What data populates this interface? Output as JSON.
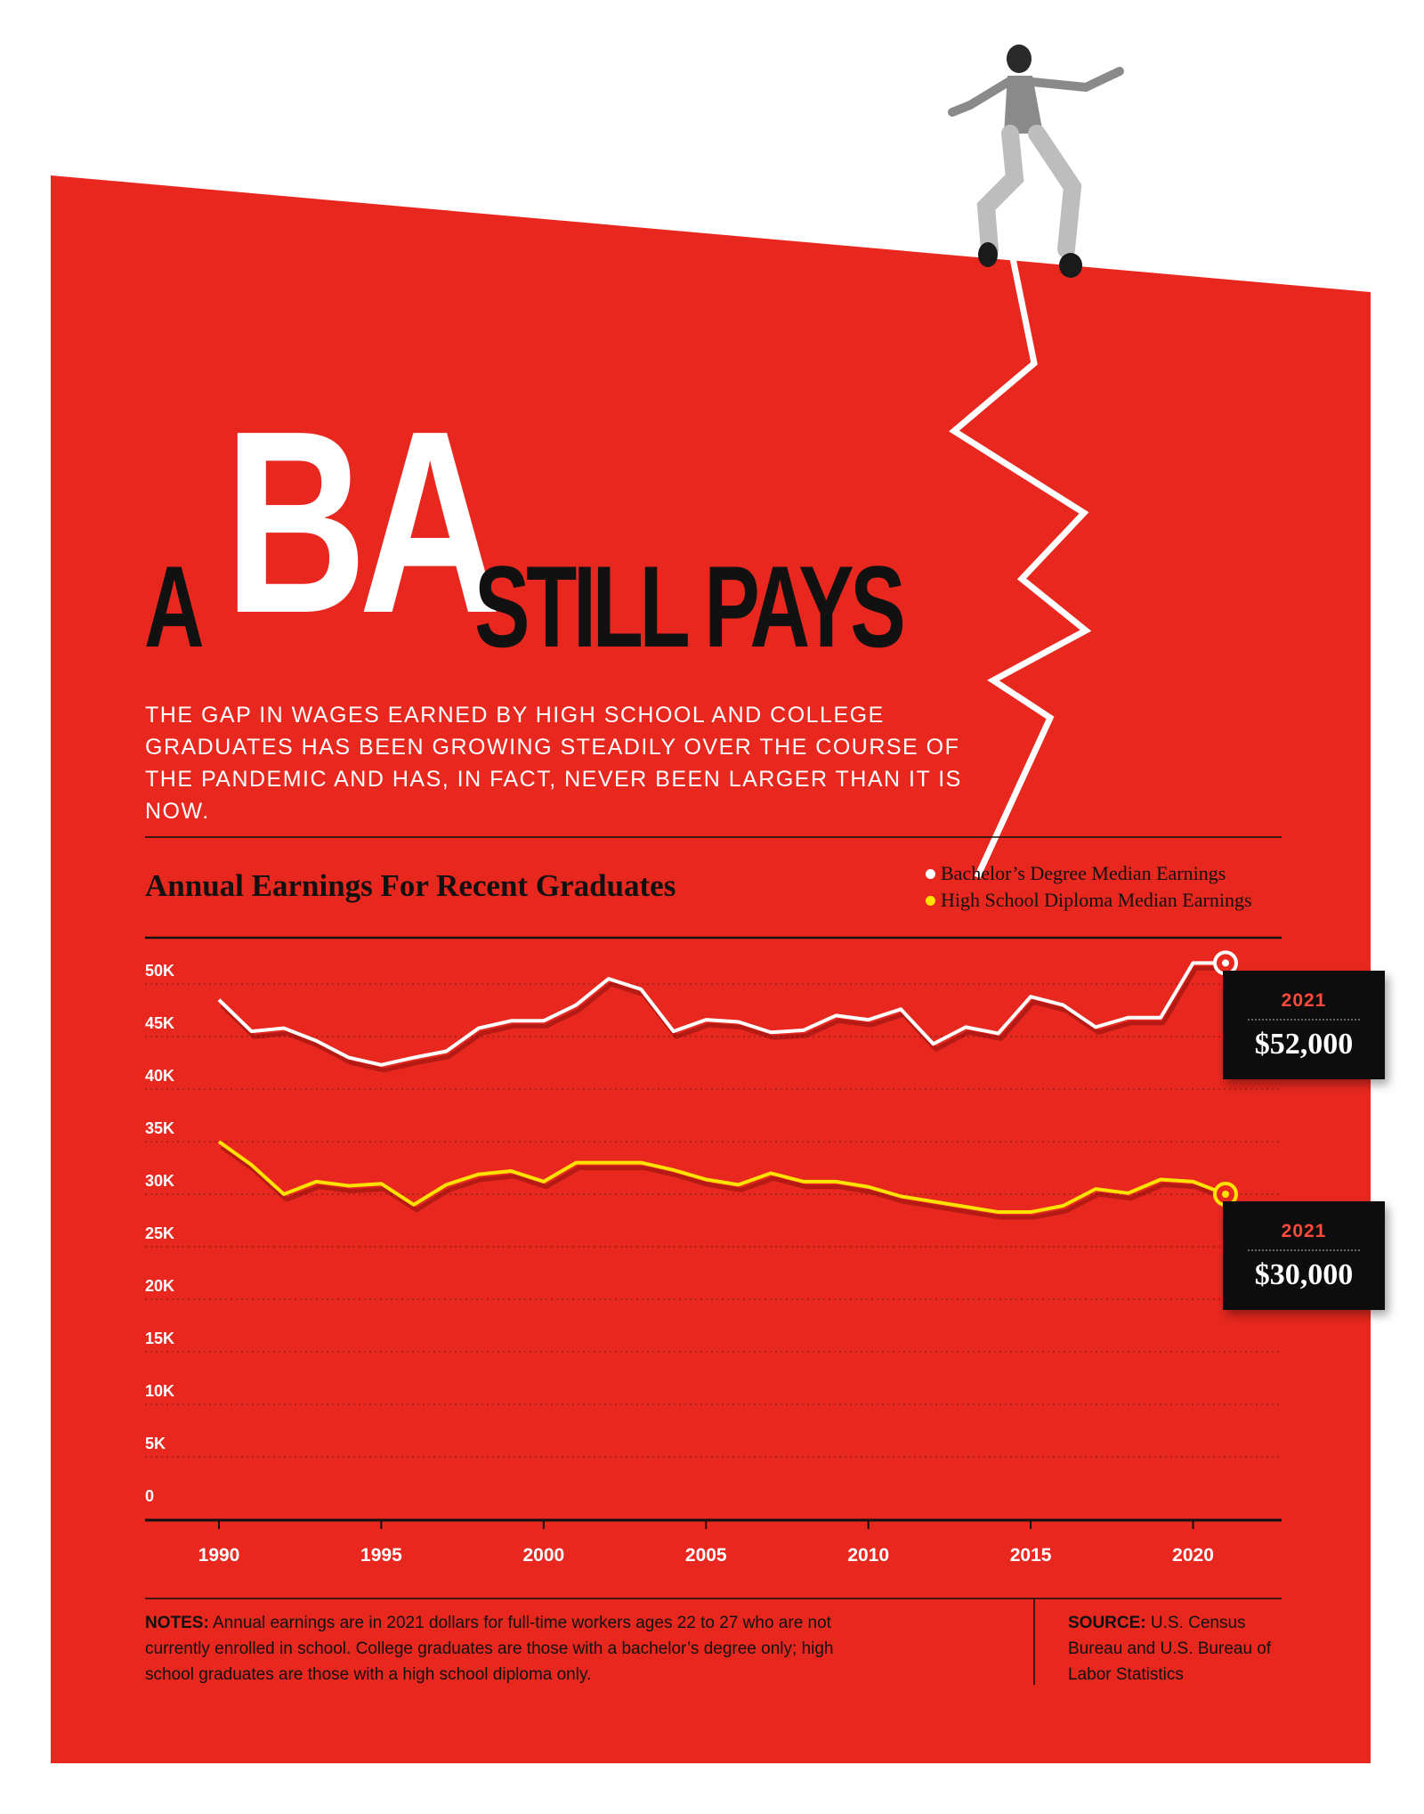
{
  "headline": {
    "a": "A",
    "ba": "BA",
    "rest": "STILL PAYS"
  },
  "subtitle": "THE GAP IN WAGES EARNED BY HIGH SCHOOL AND COLLEGE GRADUATES HAS BEEN GROWING STEADILY OVER THE COURSE OF THE PANDEMIC AND HAS, IN FACT, NEVER BEEN LARGER THAN IT IS NOW.",
  "colors": {
    "background": "#e8281f",
    "bachelor": "#ffffff",
    "high_school": "#ffe300",
    "ink": "#111111"
  },
  "callouts": [
    {
      "year": "2021",
      "value": "$52,000"
    },
    {
      "year": "2021",
      "value": "$30,000"
    }
  ],
  "notes": {
    "label": "NOTES:",
    "text": " Annual earnings are in 2021 dollars for full-time workers ages 22 to 27 who are not currently enrolled in school. College graduates are those with a bachelor’s degree only; high school graduates are those with a high school diploma only."
  },
  "source": {
    "label": "SOURCE:",
    "text": " U.S. Census Bureau and U.S. Bureau of Labor Statistics"
  },
  "chart_data": {
    "type": "line",
    "title": "Annual Earnings For Recent Graduates",
    "xlabel": "",
    "ylabel": "",
    "x": [
      1990,
      1991,
      1992,
      1993,
      1994,
      1995,
      1996,
      1997,
      1998,
      1999,
      2000,
      2001,
      2002,
      2003,
      2004,
      2005,
      2006,
      2007,
      2008,
      2009,
      2010,
      2011,
      2012,
      2013,
      2014,
      2015,
      2016,
      2017,
      2018,
      2019,
      2020,
      2021
    ],
    "xticks": [
      1990,
      1995,
      2000,
      2005,
      2010,
      2015,
      2020
    ],
    "xtick_labels": [
      "1990",
      "1995",
      "2000",
      "2005",
      "2010",
      "2015",
      "2020"
    ],
    "ylim": [
      0,
      52000
    ],
    "yticks": [
      0,
      5000,
      10000,
      15000,
      20000,
      25000,
      30000,
      35000,
      40000,
      45000,
      50000
    ],
    "ytick_labels": [
      "0",
      "5K",
      "10K",
      "15K",
      "20K",
      "25K",
      "30K",
      "35K",
      "40K",
      "45K",
      "50K"
    ],
    "grid": true,
    "legend": "top-right",
    "series": [
      {
        "name": "Bachelor’s Degree Median Earnings",
        "color": "#ffffff",
        "values": [
          48500,
          45500,
          45800,
          44600,
          43000,
          42300,
          43000,
          43600,
          45800,
          46500,
          46500,
          48000,
          50500,
          49500,
          45500,
          46600,
          46400,
          45400,
          45600,
          47000,
          46600,
          47600,
          44300,
          45900,
          45300,
          48800,
          48000,
          45900,
          46800,
          46800,
          52000,
          52000
        ]
      },
      {
        "name": "High School Diploma Median Earnings",
        "color": "#ffe300",
        "values": [
          35000,
          32800,
          30000,
          31200,
          30800,
          31000,
          29000,
          30900,
          31900,
          32200,
          31200,
          33000,
          33000,
          33000,
          32300,
          31400,
          30900,
          32000,
          31200,
          31200,
          30700,
          29800,
          29300,
          28800,
          28300,
          28300,
          28900,
          30500,
          30100,
          31400,
          31200,
          30000
        ]
      }
    ]
  }
}
